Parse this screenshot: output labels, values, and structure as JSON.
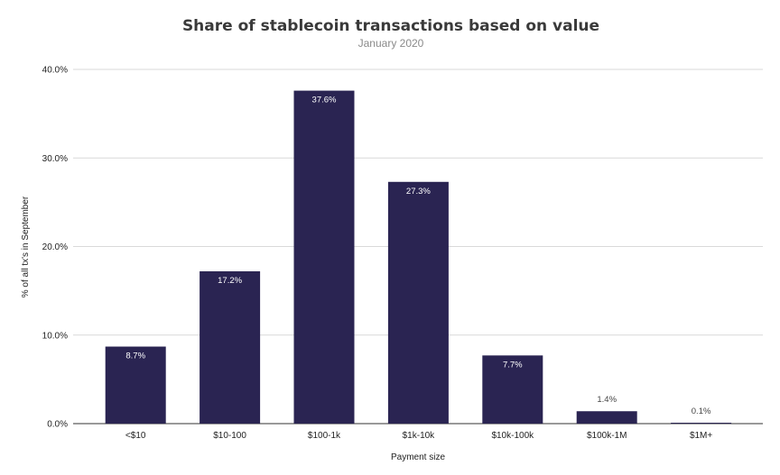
{
  "chart_data": {
    "type": "bar",
    "title": "Share of stablecoin transactions based on value",
    "subtitle": "January 2020",
    "xlabel": "Payment size",
    "ylabel": "% of all tx's in September",
    "categories": [
      "<$10",
      "$10-100",
      "$100-1k",
      "$1k-10k",
      "$10k-100k",
      "$100k-1M",
      "$1M+"
    ],
    "values": [
      8.7,
      17.2,
      37.6,
      27.3,
      7.7,
      1.4,
      0.1
    ],
    "data_labels": [
      "8.7%",
      "17.2%",
      "37.6%",
      "27.3%",
      "7.7%",
      "1.4%",
      "0.1%"
    ],
    "ylim": [
      0,
      40
    ],
    "yticks": [
      0,
      10,
      20,
      30,
      40
    ],
    "ytick_labels": [
      "0.0%",
      "10.0%",
      "20.0%",
      "30.0%",
      "40.0%"
    ],
    "grid": true,
    "legend": "none",
    "colors": {
      "bar": "#2a2452",
      "grid": "#d9d9d9"
    }
  }
}
